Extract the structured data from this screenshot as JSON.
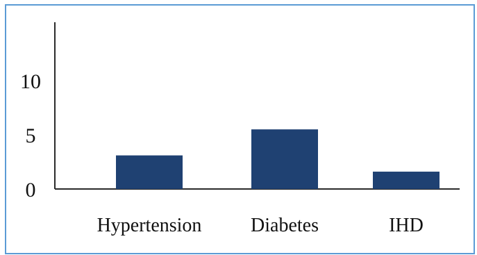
{
  "chart_data": {
    "type": "bar",
    "title": "",
    "xlabel": "",
    "ylabel": "",
    "categories": [
      "Hypertension",
      "Diabetes",
      "IHD"
    ],
    "values": [
      3.1,
      5.5,
      1.6
    ],
    "ylim": [
      0,
      15
    ],
    "yticks": [
      "0",
      "5",
      "10"
    ],
    "grid": false,
    "legend": "none",
    "bar_color": "#1f4172",
    "axis_color": "#2b2b2b",
    "frame_color": "#5b9bd5"
  }
}
